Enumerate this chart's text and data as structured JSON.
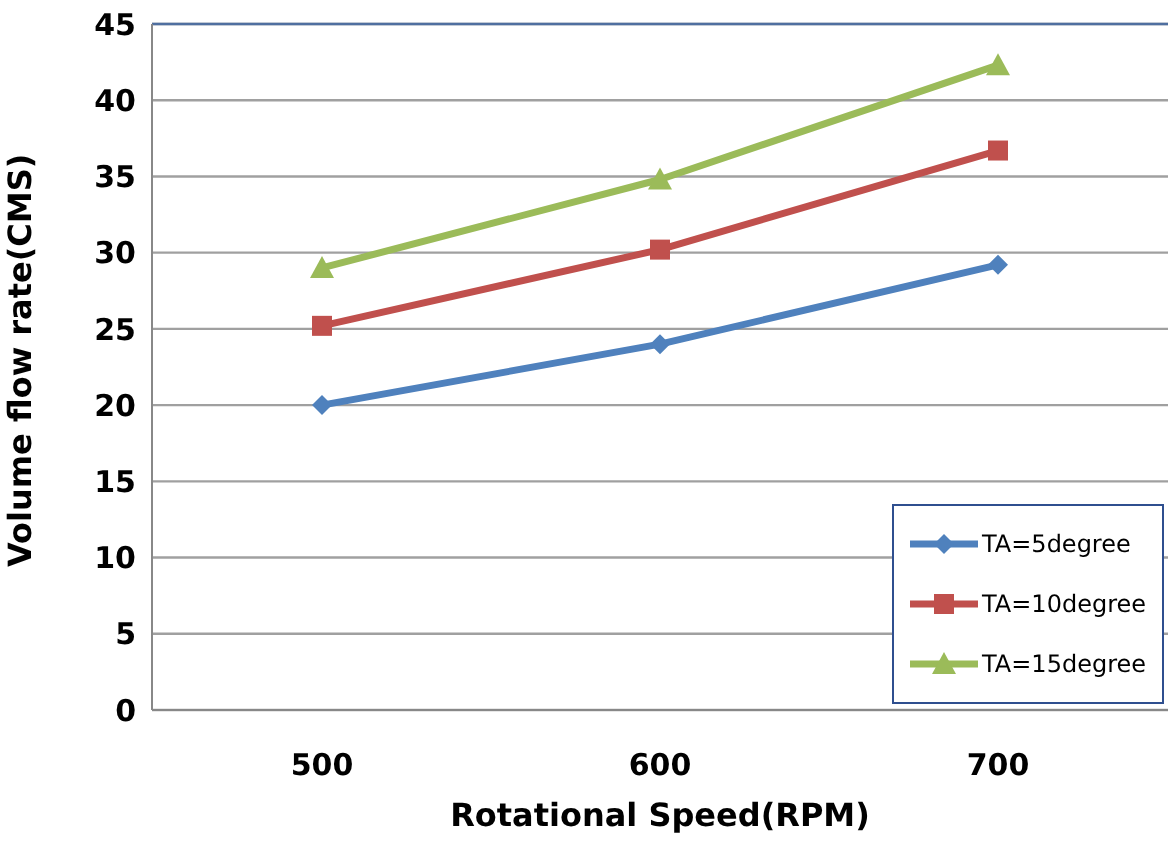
{
  "chart_data": {
    "type": "line",
    "xlabel": "Rotational Speed(RPM)",
    "ylabel": "Volume flow rate(CMS)",
    "categories": [
      "500",
      "600",
      "700"
    ],
    "series": [
      {
        "name": "TA=5degree",
        "color": "#4f81bd",
        "marker": "diamond",
        "values": [
          20,
          24,
          29.2
        ]
      },
      {
        "name": "TA=10degree",
        "color": "#c0504d",
        "marker": "square",
        "values": [
          25.2,
          30.2,
          36.7
        ]
      },
      {
        "name": "TA=15degree",
        "color": "#9bbb59",
        "marker": "triangle",
        "values": [
          29,
          34.8,
          42.3
        ]
      }
    ],
    "ylim": [
      0,
      45
    ],
    "yticks": [
      0,
      5,
      10,
      15,
      20,
      25,
      30,
      35,
      40,
      45
    ],
    "grid": "y",
    "legend": "bottom right"
  }
}
